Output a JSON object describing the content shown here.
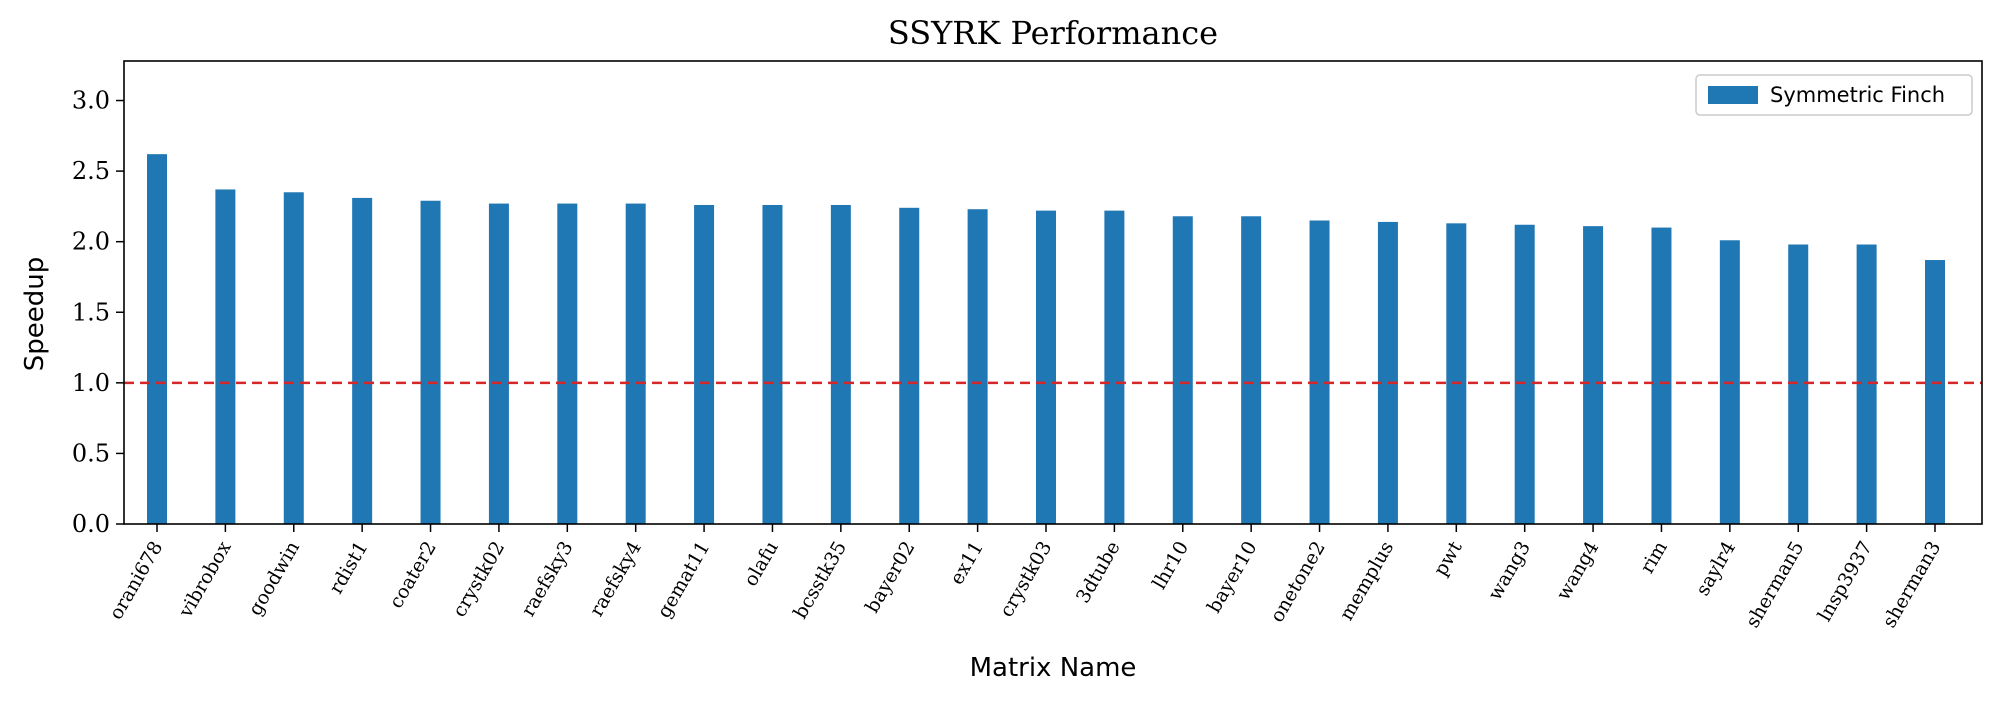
{
  "chart_data": {
    "type": "bar",
    "title": "SSYRK Performance",
    "xlabel": "Matrix Name",
    "ylabel": "Speedup",
    "ylim": [
      0,
      3.28
    ],
    "yticks": [
      "0.0",
      "0.5",
      "1.0",
      "1.5",
      "2.0",
      "2.5",
      "3.0"
    ],
    "grid": false,
    "legend_position": "top-right",
    "reference_line": {
      "y": 1.0,
      "style": "dashed",
      "color": "#d62728"
    },
    "categories": [
      "orani678",
      "vibrobox",
      "goodwin",
      "rdist1",
      "coater2",
      "crystk02",
      "raefsky3",
      "raefsky4",
      "gemat11",
      "olafu",
      "bcsstk35",
      "bayer02",
      "ex11",
      "crystk03",
      "3dtube",
      "lhr10",
      "bayer10",
      "onetone2",
      "memplus",
      "pwt",
      "wang3",
      "wang4",
      "rim",
      "saylr4",
      "sherman5",
      "lnsp3937",
      "sherman3"
    ],
    "series": [
      {
        "name": "Symmetric Finch",
        "color": "#1f77b4",
        "values": [
          2.62,
          2.37,
          2.35,
          2.31,
          2.29,
          2.27,
          2.27,
          2.27,
          2.26,
          2.26,
          2.26,
          2.24,
          2.23,
          2.22,
          2.22,
          2.18,
          2.18,
          2.15,
          2.14,
          2.13,
          2.12,
          2.11,
          2.1,
          2.01,
          1.98,
          1.98,
          1.87
        ]
      }
    ]
  }
}
